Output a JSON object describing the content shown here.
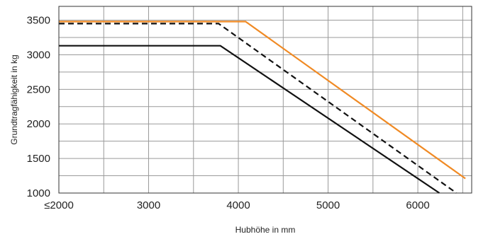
{
  "chart_data": {
    "type": "line",
    "title": "",
    "xlabel": "Hubhöhe in mm",
    "ylabel": "Grundtragfähigkeit in kg",
    "xlim": [
      2000,
      6600
    ],
    "ylim": [
      1000,
      3700
    ],
    "grid": true,
    "x_ticks": [
      {
        "value": 2000,
        "label": "≤2000"
      },
      {
        "value": 3000,
        "label": "3000"
      },
      {
        "value": 4000,
        "label": "4000"
      },
      {
        "value": 5000,
        "label": "5000"
      },
      {
        "value": 6000,
        "label": "6000"
      }
    ],
    "y_ticks": [
      {
        "value": 1000,
        "label": "1000"
      },
      {
        "value": 1500,
        "label": "1500"
      },
      {
        "value": 2000,
        "label": "2000"
      },
      {
        "value": 2500,
        "label": "2500"
      },
      {
        "value": 3000,
        "label": "3000"
      },
      {
        "value": 3500,
        "label": "3500"
      }
    ],
    "x_minor_grid": [
      2500,
      3500,
      4500,
      5500,
      6500
    ],
    "y_minor_grid": [
      1250,
      1750,
      2250,
      2750,
      3250
    ],
    "series": [
      {
        "color": "#F08A24",
        "style": "solid",
        "points": [
          [
            2000,
            3480
          ],
          [
            4080,
            3480
          ],
          [
            6530,
            1210
          ]
        ]
      },
      {
        "color": "#111111",
        "style": "dashed",
        "points": [
          [
            2000,
            3450
          ],
          [
            3780,
            3450
          ],
          [
            6430,
            1000
          ]
        ]
      },
      {
        "color": "#111111",
        "style": "solid",
        "points": [
          [
            2000,
            3130
          ],
          [
            3800,
            3130
          ],
          [
            6240,
            1000
          ]
        ]
      }
    ],
    "colors": {
      "grid": "#9a9a9a",
      "axis": "#333333",
      "text": "#222222"
    }
  }
}
